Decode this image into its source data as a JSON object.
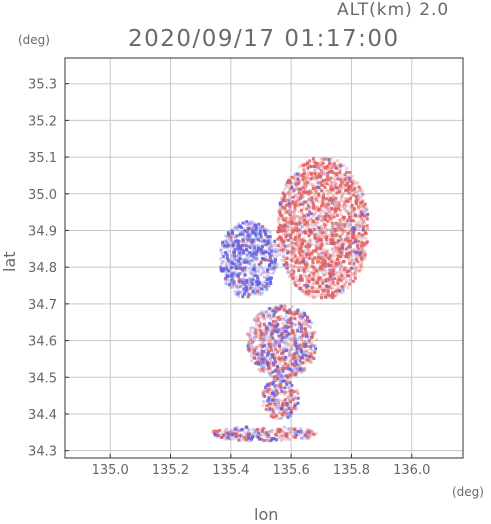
{
  "header": {
    "altitude_label": "ALT(km) 2.0",
    "datetime": "2020/09/17 01:17:00"
  },
  "axes": {
    "y_unit": "(deg)",
    "x_unit": "(deg)",
    "y_label": "lat",
    "x_label": "lon"
  },
  "colors": {
    "frame": "#333333",
    "grid": "#c8c8c8",
    "tick_text": "#666666",
    "positive": "#e06060",
    "negative": "#6060e0"
  },
  "chart_data": {
    "type": "heatmap",
    "title": "2020/09/17 01:17:00",
    "xlabel": "lon",
    "ylabel": "lat",
    "xlim": [
      134.85,
      136.17
    ],
    "ylim": [
      34.28,
      35.37
    ],
    "xticks": [
      "135.0",
      "135.2",
      "135.4",
      "135.6",
      "135.8",
      "136.0"
    ],
    "yticks": [
      "34.3",
      "34.4",
      "34.5",
      "34.6",
      "34.7",
      "34.8",
      "34.9",
      "35.0",
      "35.1",
      "35.2",
      "35.3"
    ],
    "grid": true,
    "regions": [
      {
        "name": "northeast-pink",
        "sign": "positive",
        "lon": [
          135.55,
          135.85
        ],
        "lat": [
          34.72,
          35.1
        ]
      },
      {
        "name": "northwest-blue",
        "sign": "negative",
        "lon": [
          135.36,
          135.55
        ],
        "lat": [
          34.72,
          34.93
        ]
      },
      {
        "name": "central-mixed",
        "sign": "mixed",
        "lon": [
          135.45,
          135.68
        ],
        "lat": [
          34.5,
          34.7
        ]
      },
      {
        "name": "southern-mixed",
        "sign": "mixed",
        "lon": [
          135.5,
          135.62
        ],
        "lat": [
          34.39,
          34.5
        ]
      },
      {
        "name": "southern-tail",
        "sign": "mixed",
        "lon": [
          135.33,
          135.68
        ],
        "lat": [
          34.33,
          34.37
        ]
      }
    ]
  }
}
